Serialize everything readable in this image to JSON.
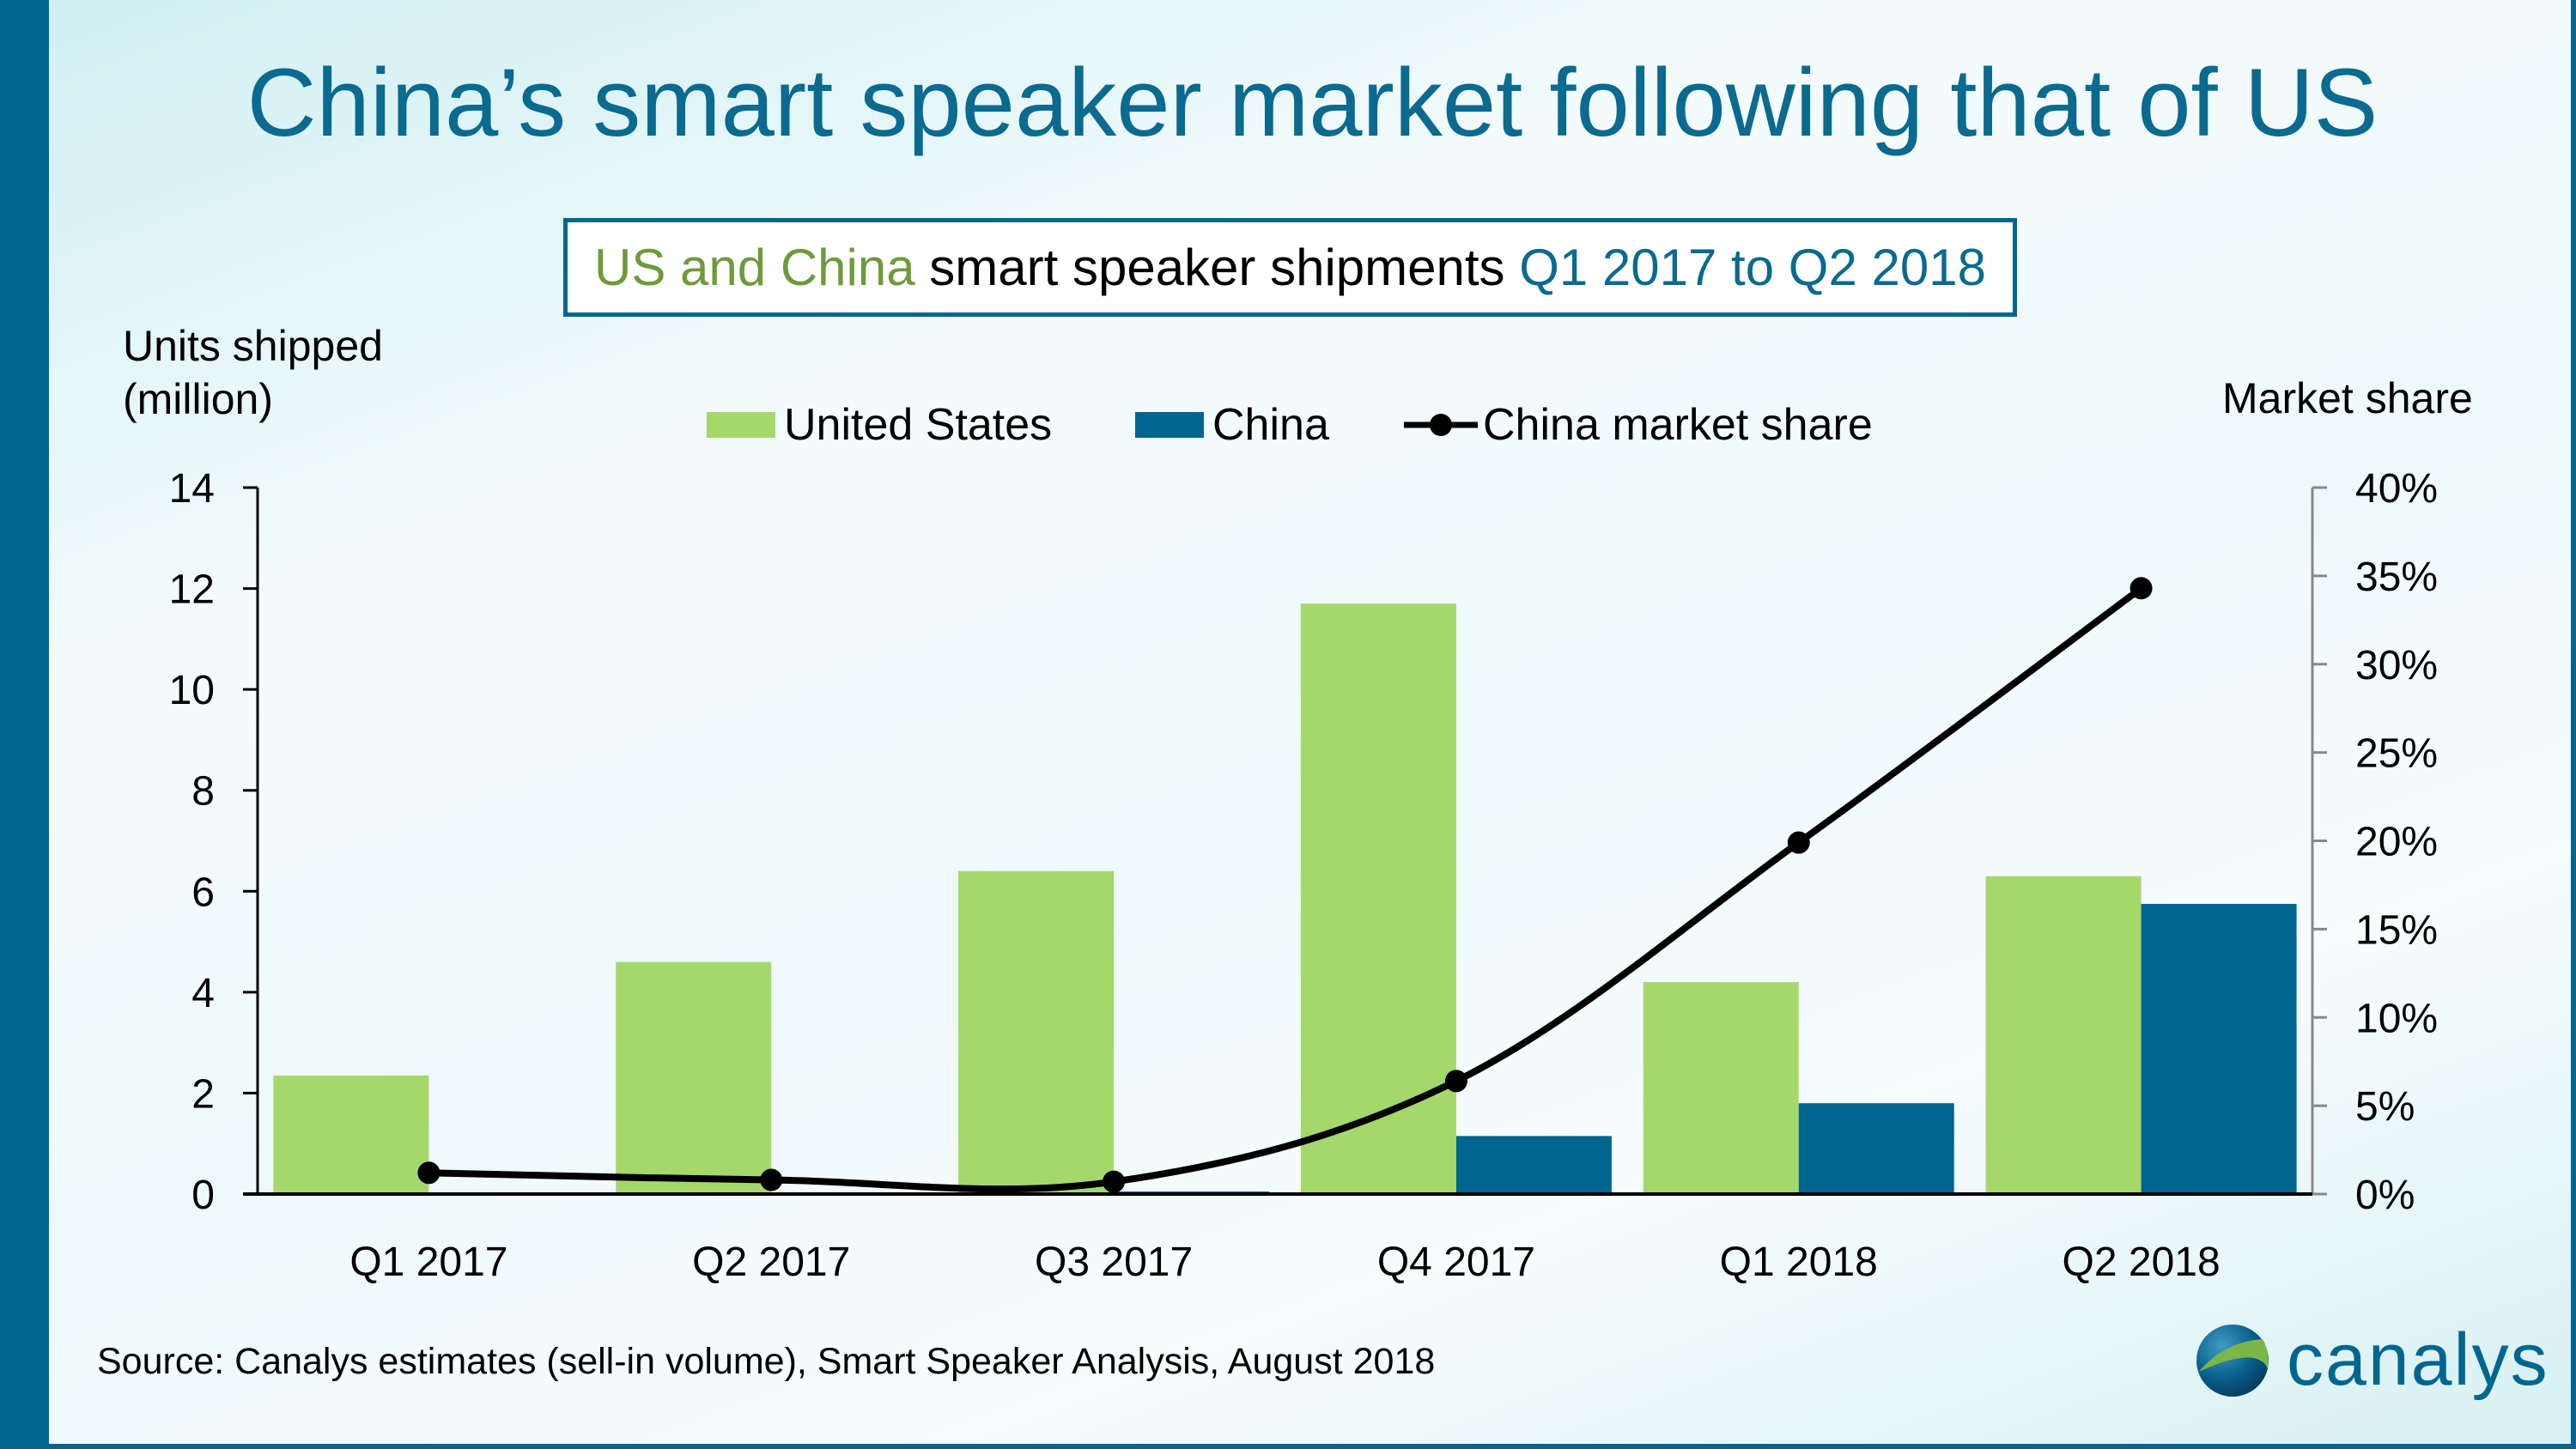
{
  "title": "China’s smart speaker market following that of US",
  "subtitle": {
    "part1": "US and China",
    "part2": " smart speaker shipments ",
    "part3": "Q1 2017 to Q2 2018"
  },
  "colors": {
    "us": "#a5d86a",
    "china": "#00658f",
    "line": "#000000",
    "title": "#0a6a8f",
    "accent_green": "#6f9a3a"
  },
  "source": "Source: Canalys estimates (sell-in volume), Smart Speaker Analysis, August 2018",
  "logo": {
    "text": "canalys",
    "icon": "globe-logo-icon"
  },
  "chart_data": {
    "type": "bar",
    "categories": [
      "Q1 2017",
      "Q2 2017",
      "Q3 2017",
      "Q4 2017",
      "Q1 2018",
      "Q2 2018"
    ],
    "ylabel": "Units shipped (million)",
    "ylabel_line1": "Units shipped",
    "ylabel_line2": "(million)",
    "y2label": "Market share",
    "ylim": [
      0,
      14
    ],
    "yticks": [
      "0",
      "2",
      "4",
      "6",
      "8",
      "10",
      "12",
      "14"
    ],
    "y2lim": [
      0,
      40
    ],
    "y2ticks": [
      "0%",
      "5%",
      "10%",
      "15%",
      "20%",
      "25%",
      "30%",
      "35%",
      "40%"
    ],
    "grid": false,
    "legend_placement": "top",
    "series": [
      {
        "name": "United States",
        "type": "bar",
        "axis": "left",
        "values": [
          2.35,
          4.6,
          6.4,
          11.7,
          4.2,
          6.3
        ]
      },
      {
        "name": "China",
        "type": "bar",
        "axis": "left",
        "values": [
          0.02,
          0.02,
          0.05,
          1.15,
          1.8,
          5.75
        ]
      },
      {
        "name": "China market share",
        "type": "line",
        "axis": "right",
        "unit": "%",
        "values": [
          1.2,
          0.8,
          0.7,
          6.4,
          19.9,
          34.3
        ]
      }
    ]
  }
}
